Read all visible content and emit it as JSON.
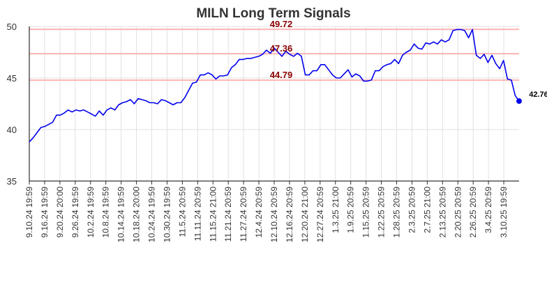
{
  "colors": {
    "line": "#0000ee",
    "grid": "#e0e0e0",
    "signal_line": "#ffb3b3",
    "signal_label": "#8b0000",
    "axis_text": "#333333",
    "title": "#333333"
  },
  "chart_data": {
    "type": "line",
    "title": "MILN Long Term Signals",
    "xlabel": "",
    "ylabel": "",
    "ylim": [
      35,
      50
    ],
    "yticks": [
      35,
      40,
      45,
      50
    ],
    "grid": true,
    "xtick_labels": [
      "9.10.24 19:59",
      "9.16.24 19:59",
      "9.20.24 20:00",
      "9.26.24 19:59",
      "10.2.24 19:59",
      "10.8.24 19:59",
      "10.14.24 19:59",
      "10.18.24 20:00",
      "10.24.24 19:59",
      "10.30.24 19:59",
      "11.5.24 20:59",
      "11.11.24 20:59",
      "11.15.24 21:00",
      "11.21.24 20:59",
      "11.27.24 20:59",
      "12.4.24 20:59",
      "12.10.24 20:59",
      "12.16.24 20:59",
      "12.20.24 21:00",
      "12.27.24 20:59",
      "1.3.25 21:00",
      "1.9.25 20:59",
      "1.15.25 20:59",
      "1.22.25 20:59",
      "1.28.25 20:59",
      "2.3.25 20:59",
      "2.7.25 21:00",
      "2.13.25 20:59",
      "2.20.25 20:59",
      "2.26.25 20:59",
      "3.4.25 20:59",
      "3.10.25 19:59"
    ],
    "signals": [
      {
        "value": 49.72,
        "label": "49.72"
      },
      {
        "value": 47.36,
        "label": "47.36"
      },
      {
        "value": 44.79,
        "label": "44.79"
      }
    ],
    "last_value_label": "42.76",
    "series": [
      {
        "values": [
          38.8,
          39.2,
          39.7,
          40.2,
          40.3,
          40.5,
          40.7,
          41.4,
          41.4,
          41.6,
          41.9,
          41.7,
          41.9,
          41.8,
          41.9,
          41.7,
          41.5,
          41.3,
          41.8,
          41.4,
          41.9,
          42.1,
          41.9,
          42.4,
          42.6,
          42.7,
          42.9,
          42.5,
          43.0,
          42.9,
          42.8,
          42.6,
          42.6,
          42.5,
          42.9,
          42.8,
          42.6,
          42.4,
          42.6,
          42.6,
          43.1,
          43.8,
          44.5,
          44.6,
          45.3,
          45.3,
          45.5,
          45.3,
          44.9,
          45.2,
          45.2,
          45.3,
          46.0,
          46.3,
          46.8,
          46.8,
          46.9,
          46.9,
          47.0,
          47.1,
          47.3,
          47.7,
          47.4,
          47.9,
          47.5,
          47.1,
          47.6,
          47.3,
          47.1,
          47.4,
          47.1,
          45.3,
          45.3,
          45.7,
          45.7,
          46.3,
          46.3,
          45.8,
          45.3,
          45.0,
          45.0,
          45.4,
          45.8,
          45.1,
          45.4,
          45.2,
          44.7,
          44.7,
          44.8,
          45.7,
          45.7,
          46.1,
          46.3,
          46.4,
          46.8,
          46.4,
          47.2,
          47.5,
          47.7,
          48.3,
          47.9,
          47.8,
          48.4,
          48.3,
          48.5,
          48.3,
          48.7,
          48.5,
          48.7,
          49.6,
          49.7,
          49.7,
          49.6,
          48.9,
          49.7,
          47.2,
          46.9,
          47.3,
          46.5,
          47.2,
          46.4,
          45.9,
          46.7,
          44.9,
          44.8,
          43.3,
          42.76
        ]
      }
    ]
  }
}
